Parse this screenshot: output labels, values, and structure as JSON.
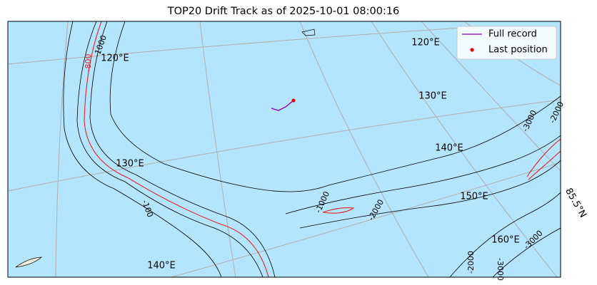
{
  "title": "TOP20 Drift Track as of 2025-10-01 08:00:16",
  "legend": [
    {
      "label": "Full record"
    },
    {
      "label": "Last position"
    }
  ],
  "meridian_labels": [
    "120°E",
    "130°E",
    "140°E",
    "120°E",
    "130°E",
    "140°E",
    "150°E",
    "160°E"
  ],
  "latitude_labels": [
    "85.5°N"
  ],
  "contour_labels": [
    "-1000",
    "-800",
    "-100",
    "-1000",
    "-2000",
    "-2000",
    "-3000",
    "-2000",
    "-3000",
    "-3000"
  ]
}
